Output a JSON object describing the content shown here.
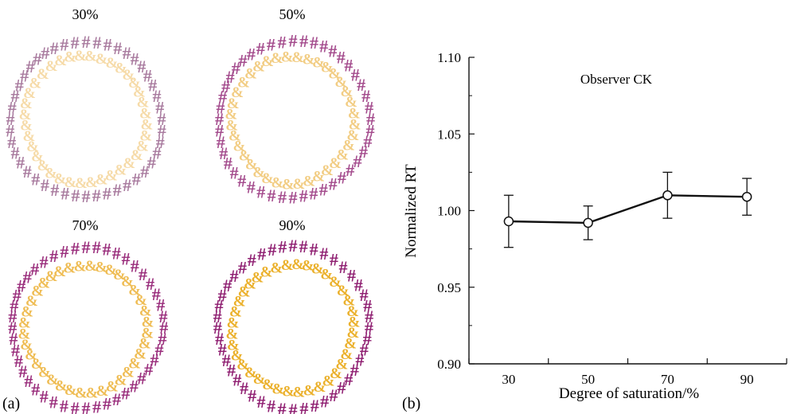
{
  "panel_a": {
    "label": "(a)",
    "outer_symbol": "#",
    "inner_symbol": "&",
    "items": [
      {
        "title": "30%",
        "saturation": 30,
        "outer_color": "#a87a9e",
        "inner_color": "#f6dba9"
      },
      {
        "title": "50%",
        "saturation": 50,
        "outer_color": "#a34a8c",
        "inner_color": "#f2cd84"
      },
      {
        "title": "70%",
        "saturation": 70,
        "outer_color": "#992c7b",
        "inner_color": "#efbd55"
      },
      {
        "title": "90%",
        "saturation": 90,
        "outer_color": "#8e1d70",
        "inner_color": "#ebb12d"
      }
    ]
  },
  "panel_b": {
    "label": "(b)"
  },
  "chart_data": {
    "type": "line",
    "title": "",
    "annotation": "Observer CK",
    "xlabel": "Degree of saturation/%",
    "ylabel": "Normalized RT",
    "x": [
      30,
      50,
      70,
      90
    ],
    "x_ticks": [
      "30",
      "50",
      "70",
      "90"
    ],
    "y_ticks": [
      "0.90",
      "0.95",
      "1.00",
      "1.05",
      "1.10"
    ],
    "ylim": [
      0.9,
      1.1
    ],
    "series": [
      {
        "values": [
          0.993,
          0.992,
          1.01,
          1.009
        ],
        "error": [
          0.017,
          0.011,
          0.015,
          0.012
        ]
      }
    ],
    "grid": false,
    "line_color": "#111111",
    "marker": "open-circle"
  }
}
